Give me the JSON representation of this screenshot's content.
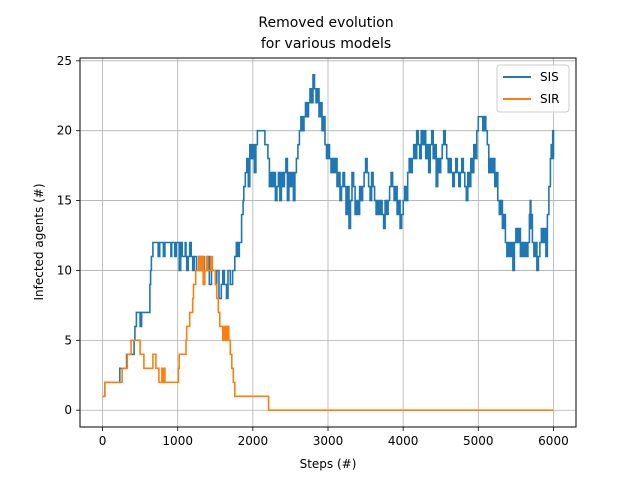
{
  "chart_data": {
    "type": "line",
    "title_line1": "Removed evolution",
    "title_line2": "for various models",
    "xlabel": "Steps (#)",
    "ylabel": "Infected agents (#)",
    "xlim": [
      -300,
      6300
    ],
    "ylim": [
      -1.2,
      25.2
    ],
    "xticks": [
      0,
      1000,
      2000,
      3000,
      4000,
      5000,
      6000
    ],
    "yticks": [
      0,
      5,
      10,
      15,
      20,
      25
    ],
    "grid": true,
    "legend_position": "top-right",
    "series": [
      {
        "name": "SIS",
        "color": "#1f77b4",
        "points": [
          [
            0,
            1
          ],
          [
            30,
            2
          ],
          [
            200,
            2
          ],
          [
            230,
            3
          ],
          [
            300,
            3
          ],
          [
            320,
            4
          ],
          [
            400,
            4
          ],
          [
            420,
            5
          ],
          [
            430,
            6
          ],
          [
            450,
            7
          ],
          [
            500,
            6
          ],
          [
            520,
            7
          ],
          [
            600,
            7
          ],
          [
            630,
            9
          ],
          [
            640,
            10
          ],
          [
            650,
            11
          ],
          [
            670,
            12
          ],
          [
            730,
            12
          ],
          [
            740,
            11
          ],
          [
            760,
            12
          ],
          [
            800,
            12
          ],
          [
            810,
            11
          ],
          [
            830,
            12
          ],
          [
            900,
            12
          ],
          [
            910,
            11
          ],
          [
            920,
            12
          ],
          [
            960,
            11
          ],
          [
            980,
            12
          ],
          [
            1020,
            10
          ],
          [
            1040,
            12
          ],
          [
            1060,
            11
          ],
          [
            1100,
            12
          ],
          [
            1110,
            11
          ],
          [
            1120,
            10
          ],
          [
            1140,
            11
          ],
          [
            1160,
            12
          ],
          [
            1180,
            11
          ],
          [
            1200,
            10
          ],
          [
            1220,
            11
          ],
          [
            1250,
            10
          ],
          [
            1280,
            11
          ],
          [
            1300,
            10
          ],
          [
            1320,
            11
          ],
          [
            1350,
            10
          ],
          [
            1400,
            11
          ],
          [
            1420,
            9
          ],
          [
            1450,
            10
          ],
          [
            1500,
            9
          ],
          [
            1520,
            10
          ],
          [
            1550,
            8
          ],
          [
            1580,
            9
          ],
          [
            1600,
            10
          ],
          [
            1620,
            9
          ],
          [
            1650,
            8
          ],
          [
            1670,
            10
          ],
          [
            1700,
            9
          ],
          [
            1730,
            10
          ],
          [
            1760,
            11
          ],
          [
            1780,
            12
          ],
          [
            1800,
            11
          ],
          [
            1820,
            12
          ],
          [
            1850,
            14
          ],
          [
            1870,
            15
          ],
          [
            1880,
            16
          ],
          [
            1900,
            17
          ],
          [
            1920,
            18
          ],
          [
            1940,
            16
          ],
          [
            1960,
            19
          ],
          [
            1980,
            18
          ],
          [
            2000,
            19
          ],
          [
            2020,
            17
          ],
          [
            2040,
            19
          ],
          [
            2060,
            20
          ],
          [
            2150,
            20
          ],
          [
            2160,
            19
          ],
          [
            2200,
            18
          ],
          [
            2220,
            16
          ],
          [
            2240,
            17
          ],
          [
            2260,
            16
          ],
          [
            2280,
            17
          ],
          [
            2300,
            15
          ],
          [
            2320,
            16
          ],
          [
            2340,
            17
          ],
          [
            2360,
            15
          ],
          [
            2380,
            17
          ],
          [
            2400,
            16
          ],
          [
            2420,
            17
          ],
          [
            2440,
            18
          ],
          [
            2460,
            15
          ],
          [
            2480,
            17
          ],
          [
            2500,
            16
          ],
          [
            2520,
            17
          ],
          [
            2540,
            15
          ],
          [
            2560,
            17
          ],
          [
            2580,
            18
          ],
          [
            2600,
            19
          ],
          [
            2620,
            20
          ],
          [
            2640,
            21
          ],
          [
            2660,
            20
          ],
          [
            2680,
            21
          ],
          [
            2700,
            22
          ],
          [
            2720,
            21
          ],
          [
            2740,
            22
          ],
          [
            2760,
            23
          ],
          [
            2780,
            22
          ],
          [
            2800,
            24
          ],
          [
            2820,
            23
          ],
          [
            2840,
            22
          ],
          [
            2860,
            23
          ],
          [
            2880,
            21
          ],
          [
            2900,
            22
          ],
          [
            2920,
            20
          ],
          [
            2940,
            21
          ],
          [
            2960,
            19
          ],
          [
            2980,
            18
          ],
          [
            3000,
            19
          ],
          [
            3020,
            18
          ],
          [
            3040,
            17
          ],
          [
            3060,
            18
          ],
          [
            3080,
            17
          ],
          [
            3100,
            18
          ],
          [
            3120,
            16
          ],
          [
            3140,
            17
          ],
          [
            3160,
            15
          ],
          [
            3180,
            16
          ],
          [
            3200,
            17
          ],
          [
            3220,
            16
          ],
          [
            3240,
            14
          ],
          [
            3260,
            16
          ],
          [
            3280,
            13
          ],
          [
            3300,
            15
          ],
          [
            3320,
            17
          ],
          [
            3340,
            16
          ],
          [
            3360,
            14
          ],
          [
            3380,
            15
          ],
          [
            3400,
            14
          ],
          [
            3420,
            16
          ],
          [
            3440,
            15
          ],
          [
            3460,
            16
          ],
          [
            3480,
            17
          ],
          [
            3500,
            18
          ],
          [
            3520,
            17
          ],
          [
            3540,
            16
          ],
          [
            3560,
            15
          ],
          [
            3580,
            17
          ],
          [
            3600,
            16
          ],
          [
            3620,
            15
          ],
          [
            3640,
            14
          ],
          [
            3660,
            15
          ],
          [
            3680,
            14
          ],
          [
            3700,
            15
          ],
          [
            3720,
            14
          ],
          [
            3740,
            13
          ],
          [
            3760,
            15
          ],
          [
            3780,
            14
          ],
          [
            3800,
            15
          ],
          [
            3820,
            16
          ],
          [
            3840,
            17
          ],
          [
            3860,
            16
          ],
          [
            3880,
            15
          ],
          [
            3900,
            16
          ],
          [
            3920,
            14
          ],
          [
            3940,
            15
          ],
          [
            3960,
            13
          ],
          [
            3980,
            14
          ],
          [
            4000,
            15
          ],
          [
            4020,
            16
          ],
          [
            4040,
            15
          ],
          [
            4060,
            17
          ],
          [
            4080,
            18
          ],
          [
            4100,
            17
          ],
          [
            4120,
            18
          ],
          [
            4140,
            19
          ],
          [
            4160,
            18
          ],
          [
            4180,
            20
          ],
          [
            4200,
            19
          ],
          [
            4220,
            18
          ],
          [
            4240,
            20
          ],
          [
            4260,
            19
          ],
          [
            4280,
            20
          ],
          [
            4300,
            18
          ],
          [
            4320,
            19
          ],
          [
            4340,
            17
          ],
          [
            4360,
            19
          ],
          [
            4380,
            20
          ],
          [
            4400,
            18
          ],
          [
            4420,
            19
          ],
          [
            4440,
            16
          ],
          [
            4460,
            18
          ],
          [
            4480,
            17
          ],
          [
            4500,
            18
          ],
          [
            4520,
            19
          ],
          [
            4540,
            20
          ],
          [
            4560,
            19
          ],
          [
            4580,
            18
          ],
          [
            4600,
            17
          ],
          [
            4620,
            18
          ],
          [
            4640,
            17
          ],
          [
            4660,
            16
          ],
          [
            4680,
            17
          ],
          [
            4700,
            18
          ],
          [
            4720,
            17
          ],
          [
            4740,
            16
          ],
          [
            4760,
            17
          ],
          [
            4780,
            18
          ],
          [
            4800,
            17
          ],
          [
            4820,
            16
          ],
          [
            4840,
            15
          ],
          [
            4860,
            17
          ],
          [
            4880,
            16
          ],
          [
            4900,
            18
          ],
          [
            4920,
            17
          ],
          [
            4940,
            19
          ],
          [
            4960,
            18
          ],
          [
            4980,
            20
          ],
          [
            5000,
            21
          ],
          [
            5040,
            21
          ],
          [
            5060,
            20
          ],
          [
            5080,
            21
          ],
          [
            5100,
            20
          ],
          [
            5120,
            19
          ],
          [
            5140,
            17
          ],
          [
            5160,
            18
          ],
          [
            5180,
            17
          ],
          [
            5200,
            18
          ],
          [
            5220,
            16
          ],
          [
            5240,
            17
          ],
          [
            5260,
            15
          ],
          [
            5280,
            14
          ],
          [
            5300,
            15
          ],
          [
            5320,
            13
          ],
          [
            5340,
            14
          ],
          [
            5360,
            12
          ],
          [
            5380,
            11
          ],
          [
            5400,
            12
          ],
          [
            5420,
            11
          ],
          [
            5440,
            12
          ],
          [
            5460,
            10
          ],
          [
            5480,
            12
          ],
          [
            5500,
            13
          ],
          [
            5520,
            12
          ],
          [
            5540,
            13
          ],
          [
            5560,
            11
          ],
          [
            5580,
            12
          ],
          [
            5600,
            11
          ],
          [
            5620,
            12
          ],
          [
            5640,
            11
          ],
          [
            5660,
            12
          ],
          [
            5680,
            14
          ],
          [
            5690,
            15
          ],
          [
            5700,
            13
          ],
          [
            5710,
            14
          ],
          [
            5720,
            12
          ],
          [
            5740,
            11
          ],
          [
            5760,
            12
          ],
          [
            5780,
            10
          ],
          [
            5800,
            11
          ],
          [
            5820,
            12
          ],
          [
            5840,
            13
          ],
          [
            5860,
            12
          ],
          [
            5880,
            13
          ],
          [
            5900,
            11
          ],
          [
            5920,
            14
          ],
          [
            5940,
            16
          ],
          [
            5960,
            18
          ],
          [
            5970,
            19
          ],
          [
            5980,
            18
          ],
          [
            5990,
            20
          ],
          [
            6000,
            18
          ]
        ]
      },
      {
        "name": "SIR",
        "color": "#ff7f0e",
        "points": [
          [
            0,
            1
          ],
          [
            30,
            2
          ],
          [
            250,
            2
          ],
          [
            260,
            3
          ],
          [
            320,
            3
          ],
          [
            330,
            4
          ],
          [
            370,
            4
          ],
          [
            380,
            5
          ],
          [
            490,
            5
          ],
          [
            500,
            4
          ],
          [
            540,
            4
          ],
          [
            550,
            3
          ],
          [
            660,
            3
          ],
          [
            670,
            4
          ],
          [
            700,
            4
          ],
          [
            710,
            3
          ],
          [
            740,
            3
          ],
          [
            750,
            2
          ],
          [
            780,
            2
          ],
          [
            790,
            3
          ],
          [
            800,
            2
          ],
          [
            820,
            3
          ],
          [
            830,
            2
          ],
          [
            1000,
            2
          ],
          [
            1010,
            3
          ],
          [
            1020,
            4
          ],
          [
            1100,
            4
          ],
          [
            1110,
            5
          ],
          [
            1120,
            6
          ],
          [
            1150,
            6
          ],
          [
            1160,
            7
          ],
          [
            1190,
            7
          ],
          [
            1200,
            8
          ],
          [
            1210,
            9
          ],
          [
            1230,
            9
          ],
          [
            1240,
            10
          ],
          [
            1260,
            10
          ],
          [
            1280,
            11
          ],
          [
            1300,
            10
          ],
          [
            1320,
            11
          ],
          [
            1340,
            9
          ],
          [
            1360,
            10
          ],
          [
            1380,
            11
          ],
          [
            1400,
            10
          ],
          [
            1420,
            10
          ],
          [
            1440,
            11
          ],
          [
            1460,
            10
          ],
          [
            1480,
            10
          ],
          [
            1500,
            9
          ],
          [
            1520,
            8
          ],
          [
            1540,
            7
          ],
          [
            1560,
            6
          ],
          [
            1580,
            6
          ],
          [
            1600,
            5
          ],
          [
            1620,
            6
          ],
          [
            1640,
            5
          ],
          [
            1660,
            6
          ],
          [
            1680,
            5
          ],
          [
            1700,
            4
          ],
          [
            1720,
            3
          ],
          [
            1740,
            2
          ],
          [
            1760,
            1
          ],
          [
            2200,
            1
          ],
          [
            2210,
            0
          ],
          [
            6000,
            0
          ]
        ]
      }
    ]
  }
}
